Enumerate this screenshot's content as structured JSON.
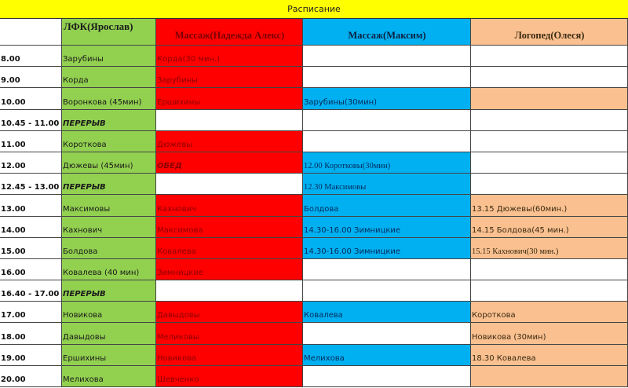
{
  "title": "Расписание",
  "colors": {
    "green": "#92d050",
    "red": "#ff0000",
    "blue": "#00b0f0",
    "peach": "#fac090",
    "title": "#ffff00"
  },
  "headers": [
    {
      "text": "",
      "fill": "white"
    },
    {
      "text": "ЛФК(Ярослав)",
      "fill": "green"
    },
    {
      "text": "Массаж(Надежда Алекс)",
      "fill": "red"
    },
    {
      "text": "Массаж(Максим)",
      "fill": "blue"
    },
    {
      "text": "Логопед(Олеся)",
      "fill": "peach"
    }
  ],
  "rows": [
    {
      "time": "8.00",
      "cells": [
        {
          "text": "Зарубины",
          "fill": "green"
        },
        {
          "text": "Корда(30 мин.)",
          "fill": "red"
        },
        {
          "text": "",
          "fill": "white"
        },
        {
          "text": "",
          "fill": "white"
        }
      ]
    },
    {
      "time": "9.00",
      "cells": [
        {
          "text": "Корда",
          "fill": "green"
        },
        {
          "text": "Зарубины",
          "fill": "red"
        },
        {
          "text": "",
          "fill": "white"
        },
        {
          "text": "",
          "fill": "white"
        }
      ]
    },
    {
      "time": "10.00",
      "cells": [
        {
          "text": "Воронкова (45мин)",
          "fill": "green"
        },
        {
          "text": "Ершихины",
          "fill": "red"
        },
        {
          "text": "Зарубины(30мин)",
          "fill": "blue"
        },
        {
          "text": "",
          "fill": "peach"
        }
      ]
    },
    {
      "time": "10.45 - 11.00",
      "cells": [
        {
          "text": "ПЕРЕРЫВ",
          "fill": "green"
        },
        {
          "text": "",
          "fill": "white"
        },
        {
          "text": "",
          "fill": "white"
        },
        {
          "text": "",
          "fill": "white"
        }
      ]
    },
    {
      "time": "11.00",
      "cells": [
        {
          "text": "Короткова",
          "fill": "green"
        },
        {
          "text": "Дюжевы",
          "fill": "red"
        },
        {
          "text": "",
          "fill": "white"
        },
        {
          "text": "",
          "fill": "white"
        }
      ]
    },
    {
      "time": "12.00",
      "cells": [
        {
          "text": "Дюжевы (45мин)",
          "fill": "green"
        },
        {
          "text": "ОБЕД",
          "fill": "red"
        },
        {
          "text": "12.00 Коротковы(30мин)",
          "fill": "blue"
        },
        {
          "text": "",
          "fill": "white"
        }
      ]
    },
    {
      "time": "12.45 - 13.00",
      "cells": [
        {
          "text": "ПЕРЕРЫВ",
          "fill": "green"
        },
        {
          "text": "",
          "fill": "white"
        },
        {
          "text": "12.30 Максимовы",
          "fill": "blue"
        },
        {
          "text": "",
          "fill": "white"
        }
      ]
    },
    {
      "time": "13.00",
      "cells": [
        {
          "text": "Максимовы",
          "fill": "green"
        },
        {
          "text": "Кахнович",
          "fill": "red"
        },
        {
          "text": "Болдова",
          "fill": "blue"
        },
        {
          "text": "13.15 Дюжевы(60мин.)",
          "fill": "peach"
        }
      ]
    },
    {
      "time": "14.00",
      "cells": [
        {
          "text": "Кахнович",
          "fill": "green"
        },
        {
          "text": "Максимова",
          "fill": "red"
        },
        {
          "text": "14.30-16.00 Зимницкие",
          "fill": "blue"
        },
        {
          "text": "14.15 Болдова(45 мин.)",
          "fill": "peach"
        }
      ]
    },
    {
      "time": "15.00",
      "cells": [
        {
          "text": "Болдова",
          "fill": "green"
        },
        {
          "text": "Ковалева",
          "fill": "red"
        },
        {
          "text": "14.30-16.00 Зимницкие",
          "fill": "blue"
        },
        {
          "text": "15.15 Кахнович(30 мин.)",
          "fill": "peach"
        }
      ]
    },
    {
      "time": "16.00",
      "cells": [
        {
          "text": "Ковалева (40 мин)",
          "fill": "green"
        },
        {
          "text": "Зимницкие",
          "fill": "red"
        },
        {
          "text": "",
          "fill": "white"
        },
        {
          "text": "",
          "fill": "white"
        }
      ]
    },
    {
      "time": "16.40 - 17.00",
      "cells": [
        {
          "text": "ПЕРЕРЫВ",
          "fill": "green"
        },
        {
          "text": "",
          "fill": "white"
        },
        {
          "text": "",
          "fill": "white"
        },
        {
          "text": "",
          "fill": "white"
        }
      ]
    },
    {
      "time": "17.00",
      "cells": [
        {
          "text": "Новикова",
          "fill": "green"
        },
        {
          "text": "Давыдовы",
          "fill": "red"
        },
        {
          "text": "Ковалева",
          "fill": "blue"
        },
        {
          "text": "Короткова",
          "fill": "peach"
        }
      ]
    },
    {
      "time": "18.00",
      "cells": [
        {
          "text": "Давыдовы",
          "fill": "green"
        },
        {
          "text": "Меликовы",
          "fill": "red"
        },
        {
          "text": "",
          "fill": "white"
        },
        {
          "text": "Новикова (30мин)",
          "fill": "peach"
        }
      ]
    },
    {
      "time": "19.00",
      "cells": [
        {
          "text": "Ершихины",
          "fill": "green"
        },
        {
          "text": "Новикова",
          "fill": "red"
        },
        {
          "text": "Мелихова",
          "fill": "blue"
        },
        {
          "text": "18.30 Ковалева",
          "fill": "peach"
        }
      ]
    },
    {
      "time": "20.00",
      "cells": [
        {
          "text": "Мелихова",
          "fill": "green"
        },
        {
          "text": "Шевченко",
          "fill": "red"
        },
        {
          "text": "",
          "fill": "white"
        },
        {
          "text": "",
          "fill": "peach"
        }
      ]
    }
  ]
}
